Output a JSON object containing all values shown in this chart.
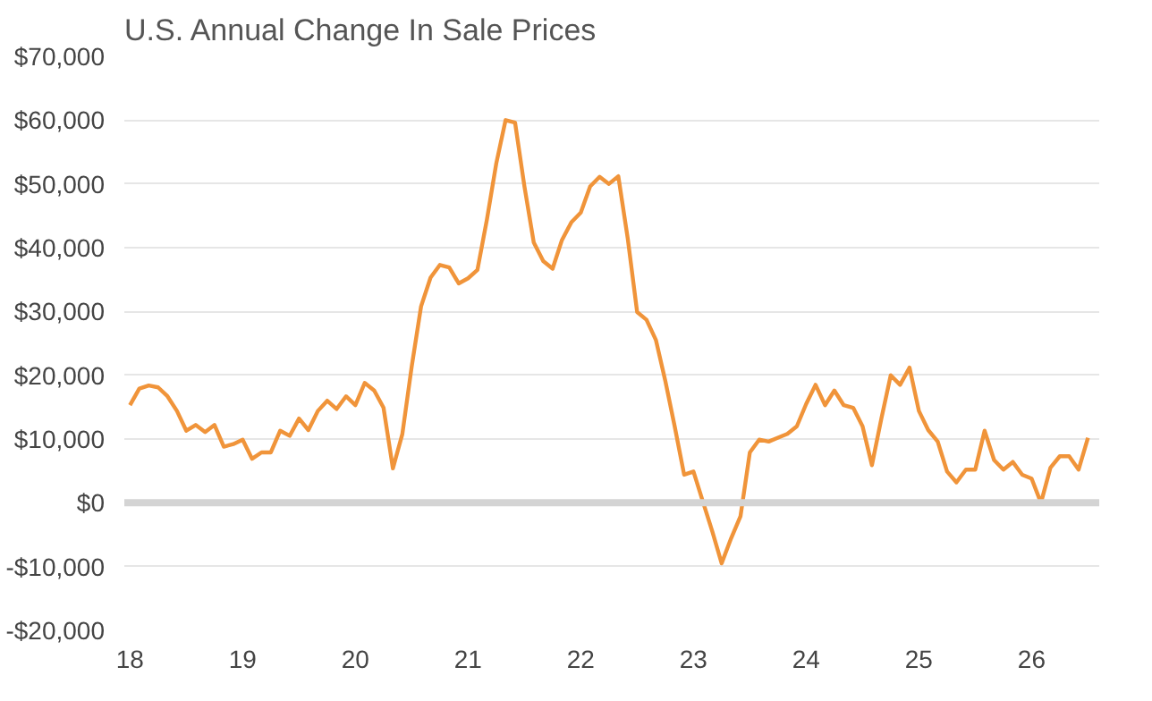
{
  "chart_data": {
    "type": "line",
    "title": "U.S. Annual Change In Sale Prices",
    "x": [
      18.0,
      18.083,
      18.167,
      18.25,
      18.333,
      18.417,
      18.5,
      18.583,
      18.667,
      18.75,
      18.833,
      18.917,
      19.0,
      19.083,
      19.167,
      19.25,
      19.333,
      19.417,
      19.5,
      19.583,
      19.667,
      19.75,
      19.833,
      19.917,
      20.0,
      20.083,
      20.167,
      20.25,
      20.333,
      20.417,
      20.5,
      20.583,
      20.667,
      20.75,
      20.833,
      20.917,
      21.0,
      21.083,
      21.167,
      21.25,
      21.333,
      21.417,
      21.5,
      21.583,
      21.667,
      21.75,
      21.833,
      21.917,
      22.0,
      22.083,
      22.167,
      22.25,
      22.333,
      22.417,
      22.5,
      22.583,
      22.667,
      22.75,
      22.833,
      22.917,
      23.0,
      23.083,
      23.167,
      23.25,
      23.333,
      23.417,
      23.5,
      23.583,
      23.667,
      23.75,
      23.833,
      23.917,
      24.0,
      24.083,
      24.167,
      24.25,
      24.333,
      24.417,
      24.5,
      24.583,
      24.667,
      24.75,
      24.833,
      24.917,
      25.0,
      25.083,
      25.167,
      25.25,
      25.333,
      25.417,
      25.5,
      25.583,
      25.667,
      25.75,
      25.833,
      25.917,
      26.0,
      26.083,
      26.167,
      26.25,
      26.333,
      26.417,
      26.5
    ],
    "series": [
      {
        "color": "#f0943a",
        "values": [
          15300,
          17900,
          18400,
          18100,
          16700,
          14400,
          11300,
          12200,
          11100,
          12200,
          8800,
          9200,
          9900,
          6900,
          7900,
          7900,
          11300,
          10500,
          13200,
          11400,
          14400,
          16000,
          14700,
          16700,
          15300,
          18800,
          17600,
          14900,
          5400,
          10800,
          21400,
          30800,
          35300,
          37300,
          36900,
          34400,
          35200,
          36500,
          44400,
          53200,
          60000,
          59600,
          49600,
          40800,
          37900,
          36700,
          41200,
          44000,
          45500,
          49600,
          51100,
          50000,
          51200,
          41400,
          29900,
          28700,
          25500,
          19100,
          12000,
          4400,
          4900,
          200,
          -4500,
          -9500,
          -5600,
          -2100,
          7900,
          9900,
          9600,
          10200,
          10800,
          12000,
          15500,
          18500,
          15300,
          17600,
          15300,
          14900,
          12000,
          5900,
          13200,
          20000,
          18500,
          21200,
          14400,
          11400,
          9600,
          4900,
          3200,
          5200,
          5200,
          11300,
          6700,
          5200,
          6400,
          4400,
          3800,
          0,
          5500,
          7300,
          7300,
          5200,
          10200
        ]
      }
    ],
    "xlim": [
      17.95,
      26.6
    ],
    "ylim": [
      -20000,
      70000
    ],
    "xticks": [
      18,
      19,
      20,
      21,
      22,
      23,
      24,
      25,
      26
    ],
    "yticks": [
      {
        "value": -20000,
        "label": "-$20,000"
      },
      {
        "value": -10000,
        "label": "-$10,000"
      },
      {
        "value": 0,
        "label": "$0"
      },
      {
        "value": 10000,
        "label": "$10,000"
      },
      {
        "value": 20000,
        "label": "$20,000"
      },
      {
        "value": 30000,
        "label": "$30,000"
      },
      {
        "value": 40000,
        "label": "$40,000"
      },
      {
        "value": 50000,
        "label": "$50,000"
      },
      {
        "value": 60000,
        "label": "$60,000"
      },
      {
        "value": 70000,
        "label": "$70,000"
      }
    ],
    "ref_lines": [
      {
        "axis": "y",
        "value": 0,
        "color": "#d4d4d4"
      }
    ],
    "grid": "y"
  }
}
